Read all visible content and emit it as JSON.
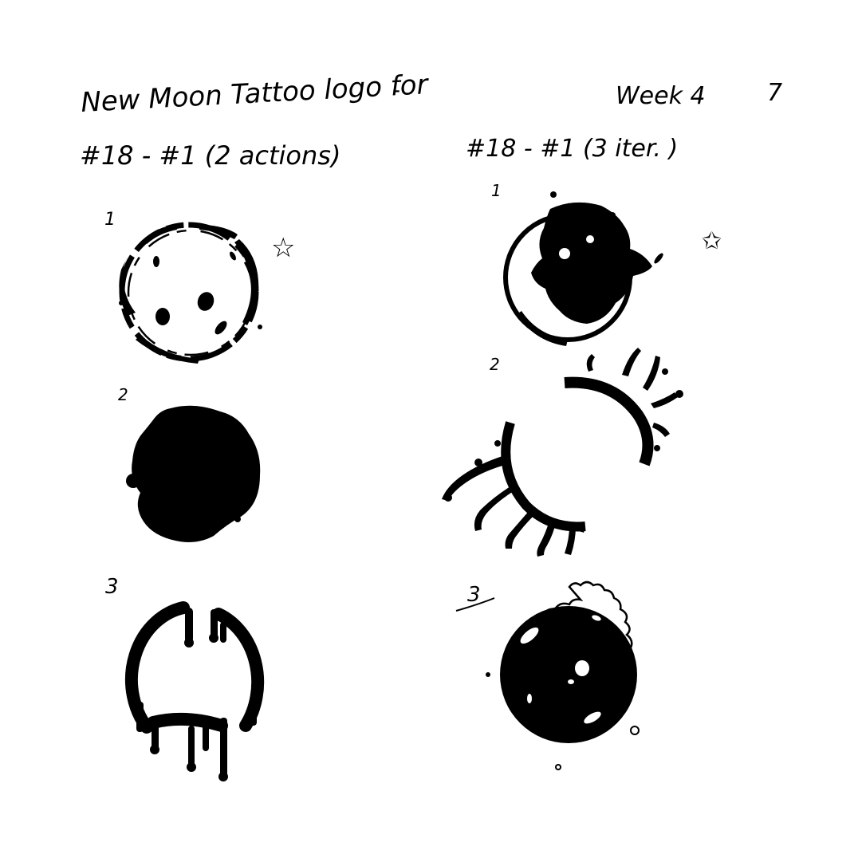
{
  "header": {
    "title": "New Moon Tattoo logo for",
    "title_dash": "-",
    "week": "Week 4",
    "page_number": "7"
  },
  "left_column": {
    "heading": "#18 - #1 (2 actions)",
    "items": [
      {
        "number": "1",
        "starred": true
      },
      {
        "number": "2",
        "starred": false
      },
      {
        "number": "3",
        "starred": false
      }
    ]
  },
  "right_column": {
    "heading": "#18 - #1 (3 iter. )",
    "items": [
      {
        "number": "1",
        "starred": true
      },
      {
        "number": "2",
        "starred": false
      },
      {
        "number": "3",
        "starred": false
      }
    ]
  },
  "colors": {
    "ink": "#000000",
    "paper": "#ffffff"
  }
}
